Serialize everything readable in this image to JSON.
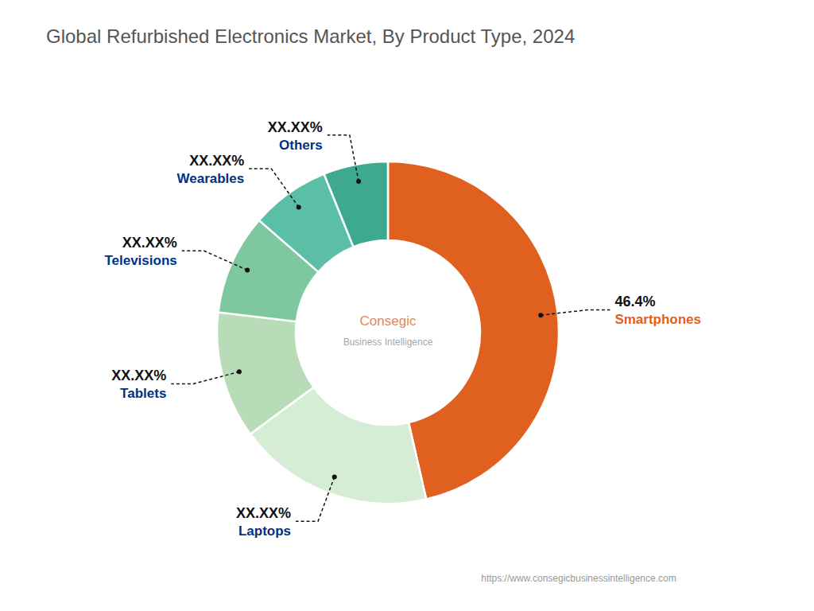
{
  "chart_data": {
    "type": "pie",
    "title": "Global Refurbished Electronics Market, By Product Type, 2024",
    "categories": [
      "Smartphones",
      "Laptops",
      "Tablets",
      "Televisions",
      "Wearables",
      "Others"
    ],
    "values": [
      46.4,
      18.5,
      12.0,
      9.5,
      7.5,
      6.1
    ],
    "value_labels": [
      "46.4%",
      "XX.XX%",
      "XX.XX%",
      "XX.XX%",
      "XX.XX%",
      "XX.XX%"
    ],
    "data_labels": true,
    "colors": [
      "#E06020",
      "#D4EDD4",
      "#B8DCB8",
      "#7EC8A0",
      "#5BBFA8",
      "#3DAA90"
    ],
    "annotations": [
      "Consegic",
      "Business Intelligence",
      "https://www.consegicbusinessintelligence.com"
    ]
  }
}
